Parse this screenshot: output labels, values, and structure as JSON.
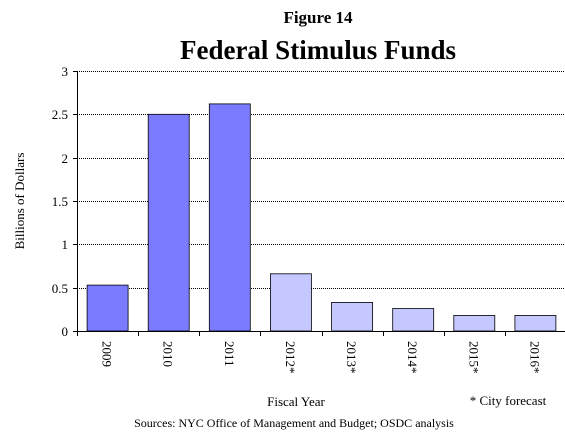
{
  "figure_label": "Figure 14",
  "notes": {
    "forecast": "* City forecast",
    "sources": "Sources: NYC Office of Management and Budget; OSDC analysis"
  },
  "colors": {
    "actual": "#7b7bff",
    "forecast": "#c4c8ff",
    "grid": "#000000",
    "axis": "#000000"
  },
  "chart_data": {
    "type": "bar",
    "title": "Federal Stimulus Funds",
    "xlabel": "Fiscal Year",
    "ylabel": "Billions of Dollars",
    "ylim": [
      0,
      3
    ],
    "yticks": [
      0,
      0.5,
      1,
      1.5,
      2,
      2.5,
      3
    ],
    "ytick_labels": [
      "0",
      "0.5",
      "1",
      "1.5",
      "2",
      "2.5",
      "3"
    ],
    "grid": "horizontal",
    "categories": [
      "2009",
      "2010",
      "2011",
      "2012*",
      "2013*",
      "2014*",
      "2015*",
      "2016*"
    ],
    "values": [
      0.53,
      2.5,
      2.62,
      0.66,
      0.33,
      0.26,
      0.18,
      0.18
    ],
    "bar_style": [
      "actual",
      "actual",
      "actual",
      "forecast",
      "forecast",
      "forecast",
      "forecast",
      "forecast"
    ]
  }
}
